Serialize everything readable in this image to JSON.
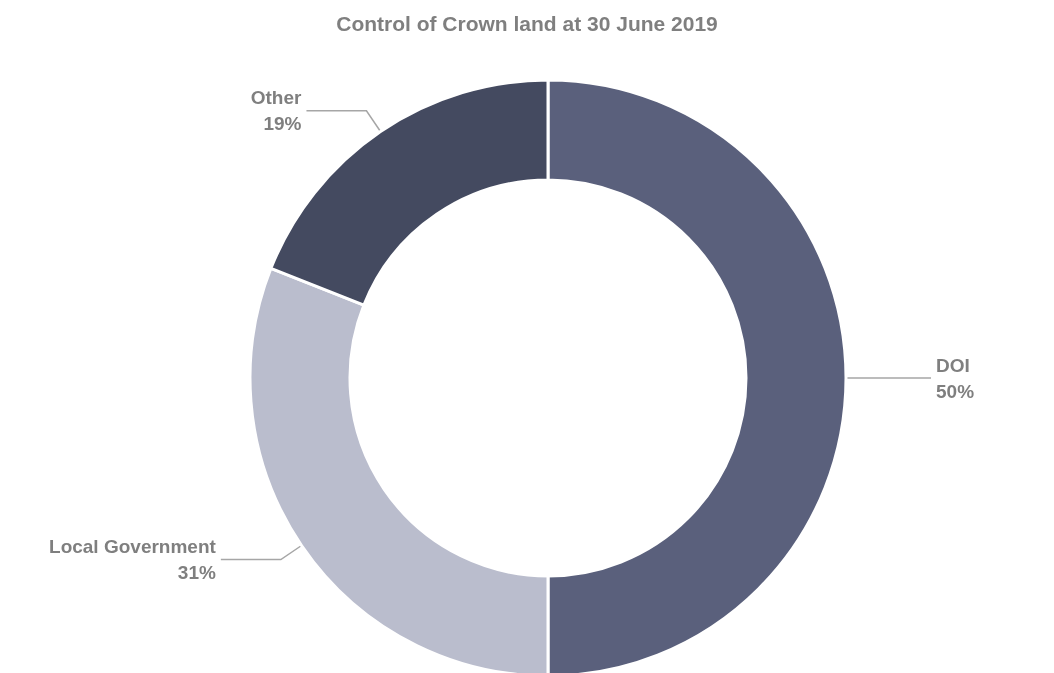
{
  "chart_data": {
    "type": "donut",
    "title": "Control of Crown land at 30 June 2019",
    "categories": [
      "DOI",
      "Local Government",
      "Other"
    ],
    "values": [
      50,
      31,
      19
    ],
    "colors": [
      "#5a607c",
      "#babdcd",
      "#444a60"
    ],
    "value_labels": [
      "50%",
      "31%",
      "19%"
    ],
    "legend": false
  }
}
